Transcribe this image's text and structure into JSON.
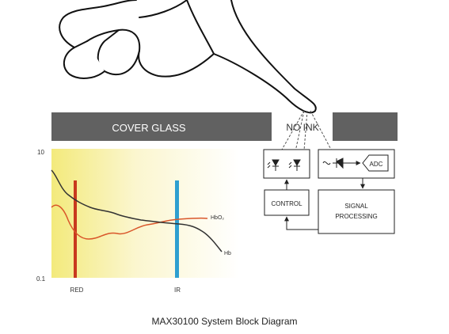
{
  "cover_glass": {
    "label": "COVER GLASS",
    "gap_label": "NO INK"
  },
  "chart_data": {
    "type": "line",
    "title": "",
    "xlabel": "",
    "ylabel": "",
    "y_scale": "log",
    "ylim": [
      0.1,
      10
    ],
    "y_ticks": [
      "10",
      "0.1"
    ],
    "x_markers": [
      {
        "label": "RED",
        "color": "#c8391e"
      },
      {
        "label": "IR",
        "color": "#2e9fd0"
      }
    ],
    "series": [
      {
        "name": "HbO₂",
        "color": "#d9562a"
      },
      {
        "name": "Hb",
        "color": "#333333"
      }
    ],
    "background_gradient": [
      "#f3ea7c",
      "#ffffff"
    ]
  },
  "blocks": {
    "emitter": {
      "label": ""
    },
    "detector": {
      "adc_label": "ADC"
    },
    "control": {
      "label": "CONTROL"
    },
    "signal": {
      "line1": "SIGNAL",
      "line2": "PROCESSING"
    }
  },
  "caption": "MAX30100 System Block Diagram"
}
